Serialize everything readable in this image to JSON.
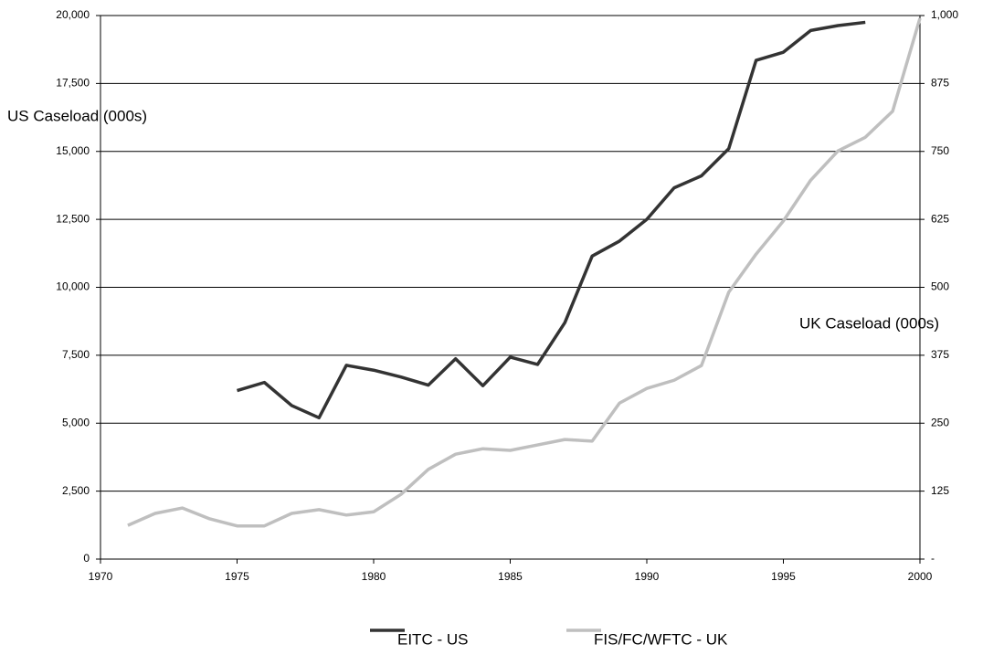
{
  "chart_data": {
    "type": "line",
    "ylabel": "US Caseload (000s)",
    "y2label": "UK Caseload (000s)",
    "x": [
      1971,
      1972,
      1973,
      1974,
      1975,
      1976,
      1977,
      1978,
      1979,
      1980,
      1981,
      1982,
      1983,
      1984,
      1985,
      1986,
      1987,
      1988,
      1989,
      1990,
      1991,
      1992,
      1993,
      1994,
      1995,
      1996,
      1997,
      1998,
      1999,
      2000
    ],
    "series": [
      {
        "name": "EITC - US",
        "color": "#333333",
        "axis": "y",
        "values": [
          null,
          null,
          null,
          null,
          6200,
          6500,
          5650,
          5200,
          7130,
          6950,
          6700,
          6400,
          7370,
          6380,
          7430,
          7160,
          8700,
          11150,
          11700,
          12500,
          13660,
          14100,
          15100,
          18350,
          18650,
          19450,
          19630,
          19750,
          null,
          null
        ]
      },
      {
        "name": "FIS/FC/WFTC - UK",
        "color": "#bfbfbf",
        "axis": "y2",
        "values": [
          62,
          84,
          94,
          74,
          61,
          61,
          84,
          91,
          81,
          87,
          119,
          165,
          193,
          203,
          200,
          210,
          220,
          217,
          287,
          314,
          329,
          356,
          491,
          561,
          622,
          697,
          751,
          776,
          824,
          995
        ]
      }
    ],
    "xlim": [
      1970,
      2000
    ],
    "xticks": [
      1970,
      1975,
      1980,
      1985,
      1990,
      1995,
      2000
    ],
    "ylim": [
      0,
      20000
    ],
    "yticks": [
      0,
      {
        "value": 2500,
        "label": "2,500"
      },
      {
        "value": 5000,
        "label": "5,000"
      },
      {
        "value": 7500,
        "label": "7,500"
      },
      {
        "value": 10000,
        "label": "10,000"
      },
      {
        "value": 12500,
        "label": "12,500"
      },
      {
        "value": 15000,
        "label": "15,000"
      },
      {
        "value": 17500,
        "label": "17,500"
      },
      {
        "value": 20000,
        "label": "20,000"
      }
    ],
    "y2lim": [
      0,
      1000
    ],
    "y2ticks": [
      {
        "value": 0,
        "label": "-"
      },
      125,
      250,
      375,
      500,
      625,
      750,
      875,
      {
        "value": 1000,
        "label": "1,000"
      }
    ],
    "grid": true
  }
}
